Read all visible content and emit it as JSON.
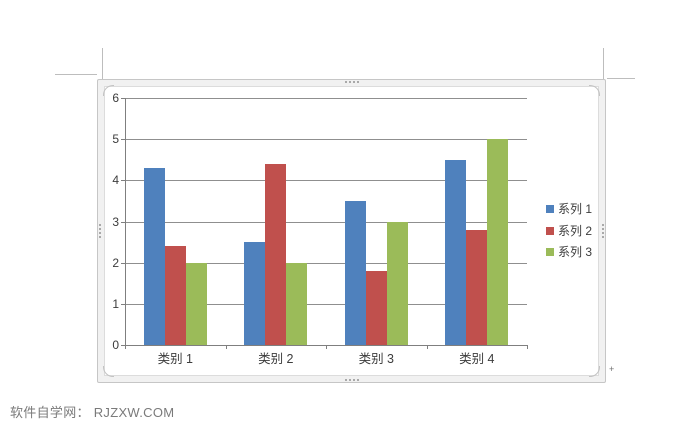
{
  "footer": {
    "text": "软件自学网： RJZXW.COM"
  },
  "chart_data": {
    "type": "bar",
    "categories": [
      "类别 1",
      "类别 2",
      "类别 3",
      "类别 4"
    ],
    "series": [
      {
        "name": "系列 1",
        "color": "#4F81BD",
        "values": [
          4.3,
          2.5,
          3.5,
          4.5
        ]
      },
      {
        "name": "系列 2",
        "color": "#C0504D",
        "values": [
          2.4,
          4.4,
          1.8,
          2.8
        ]
      },
      {
        "name": "系列 3",
        "color": "#9BBB59",
        "values": [
          2.0,
          2.0,
          3.0,
          5.0
        ]
      }
    ],
    "xlabel": "",
    "ylabel": "",
    "ylim": [
      0,
      6
    ],
    "yticks": [
      0,
      1,
      2,
      3,
      4,
      5,
      6
    ],
    "grid": true,
    "legend_position": "right",
    "gridline_color": "#8f8f8f",
    "axis_color": "#7f7f7f"
  }
}
